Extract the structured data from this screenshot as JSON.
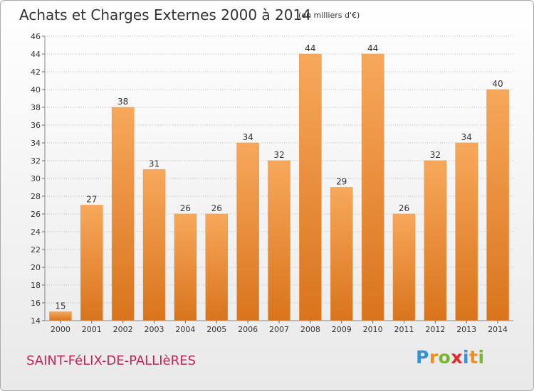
{
  "title": "Achats et Charges Externes 2000 à 2014",
  "subtitle": "(en milliers d'€)",
  "commune": "SAINT-FéLIX-DE-PALLIèRES",
  "logo": {
    "letters": [
      "P",
      "r",
      "o",
      "x",
      "i",
      "t",
      "i"
    ],
    "colors": [
      "#3a8fd6",
      "#f28c1e",
      "#7ab72e",
      "#e8262b",
      "#3a8fd6",
      "#f28c1e",
      "#7ab72e"
    ]
  },
  "colors": {
    "bar_top": "#f7a85b",
    "bar_bottom": "#d9741c",
    "grid": "#bbbbbb",
    "text": "#333333",
    "commune": "#c4245a"
  },
  "chart_data": {
    "type": "bar",
    "categories": [
      "2000",
      "2001",
      "2002",
      "2003",
      "2004",
      "2005",
      "2006",
      "2007",
      "2008",
      "2009",
      "2010",
      "2011",
      "2012",
      "2013",
      "2014"
    ],
    "values": [
      15,
      27,
      38,
      31,
      26,
      26,
      34,
      32,
      44,
      29,
      44,
      26,
      32,
      34,
      40
    ],
    "ylim": [
      14,
      46
    ],
    "yticks": [
      14,
      16,
      18,
      20,
      22,
      24,
      26,
      28,
      30,
      32,
      34,
      36,
      38,
      40,
      42,
      44,
      46
    ],
    "grid": true,
    "xlabel": "",
    "ylabel": ""
  }
}
